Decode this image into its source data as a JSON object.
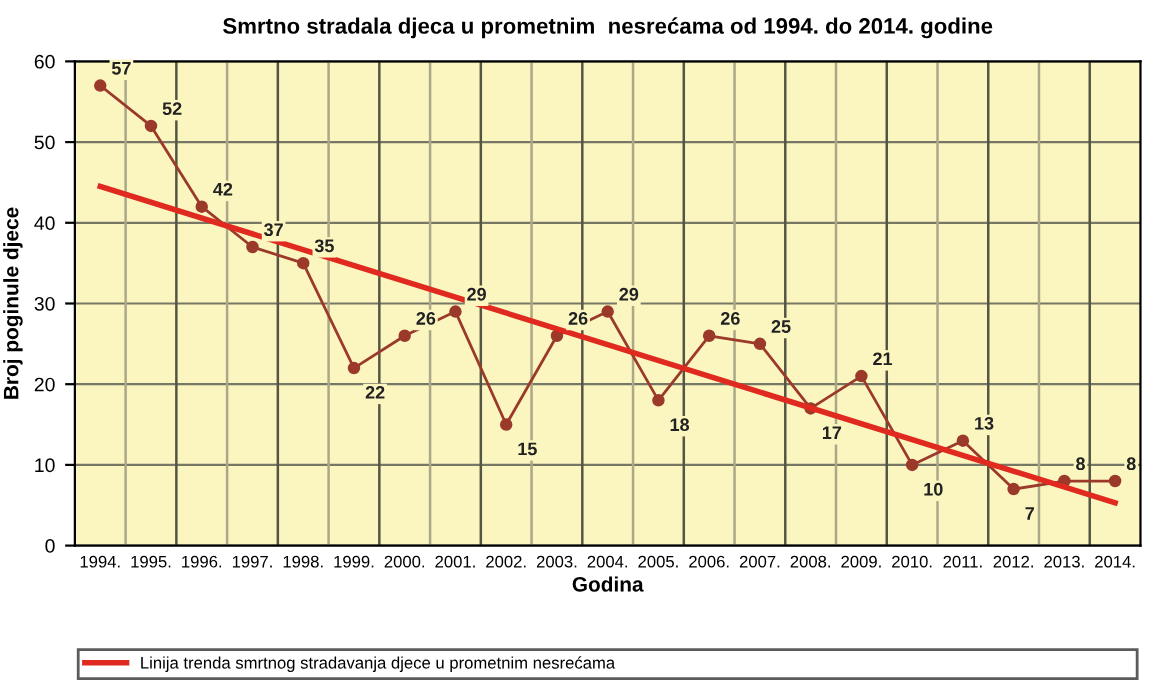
{
  "chart_data": {
    "type": "line",
    "title": "Smrtno stradala djeca u prometnim  nesrećama od 1994. do 2014. godine",
    "xlabel": "Godina",
    "ylabel": "Broj poginule djece",
    "categories": [
      "1994.",
      "1995.",
      "1996.",
      "1997.",
      "1998.",
      "1999.",
      "2000.",
      "2001.",
      "2002.",
      "2003.",
      "2004.",
      "2005.",
      "2006.",
      "2007.",
      "2008.",
      "2009.",
      "2010.",
      "2011.",
      "2012.",
      "2013.",
      "2014."
    ],
    "series": [
      {
        "color": "#9b3a2a",
        "values": [
          57,
          52,
          42,
          37,
          35,
          22,
          26,
          29,
          15,
          26,
          29,
          18,
          26,
          25,
          17,
          21,
          10,
          13,
          7,
          8,
          8
        ],
        "value_labels": [
          "57",
          "52",
          "42",
          "37",
          "35",
          "22",
          "26",
          "29",
          "15",
          "26",
          "29",
          "18",
          "26",
          "25",
          "17",
          "21",
          "10",
          "13",
          "7",
          "8",
          "8"
        ]
      },
      {
        "name": "Linija trenda smrtnog stradavanja djece u prometnim nesrećama",
        "color": "#e02a20",
        "x": [
          "1994.",
          "2014."
        ],
        "values": [
          44.5,
          5.3
        ],
        "marker": "none"
      }
    ],
    "marker": "circle",
    "ylim": [
      0,
      60
    ],
    "yticks": [
      0,
      10,
      20,
      30,
      40,
      50,
      60
    ],
    "grid": true,
    "legend": "bottom"
  }
}
